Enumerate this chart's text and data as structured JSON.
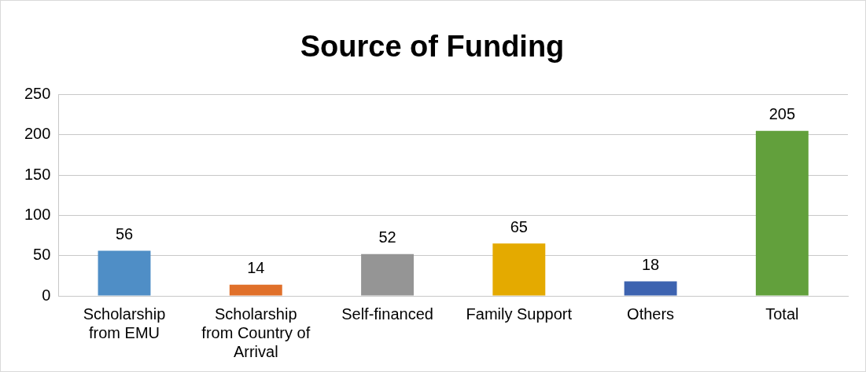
{
  "chart_data": {
    "type": "bar",
    "title": "Source of Funding",
    "categories": [
      "Scholarship from EMU",
      "Scholarship from Country of Arrival",
      "Self-financed",
      "Family Support",
      "Others",
      "Total"
    ],
    "values": [
      56,
      14,
      52,
      65,
      18,
      205
    ],
    "colors": [
      "#4f8ec6",
      "#e0702a",
      "#959595",
      "#e4aa00",
      "#3d63b0",
      "#62a03c"
    ],
    "ylim": [
      0,
      250
    ],
    "yticks": [
      0,
      50,
      100,
      150,
      200,
      250
    ],
    "grid": "y",
    "legend": false,
    "data_labels": true
  }
}
